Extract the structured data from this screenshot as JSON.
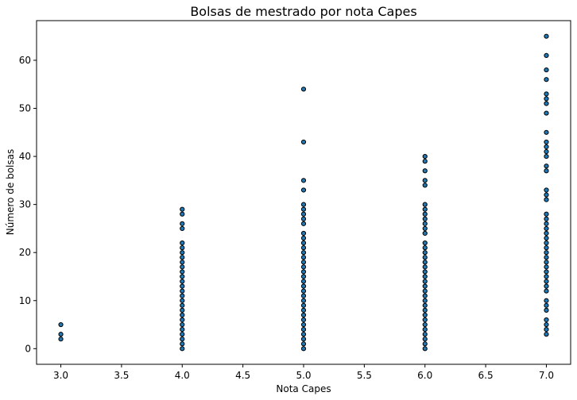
{
  "chart_data": {
    "type": "scatter",
    "title": "Bolsas de mestrado por nota Capes",
    "xlabel": "Nota Capes",
    "ylabel": "Número de bolsas",
    "xlim": [
      2.8,
      7.2
    ],
    "ylim": [
      -3.25,
      68.25
    ],
    "xticks": [
      3.0,
      3.5,
      4.0,
      4.5,
      5.0,
      5.5,
      6.0,
      6.5,
      7.0
    ],
    "xtick_labels": [
      "3.0",
      "3.5",
      "4.0",
      "4.5",
      "5.0",
      "5.5",
      "6.0",
      "6.5",
      "7.0"
    ],
    "yticks": [
      0,
      10,
      20,
      30,
      40,
      50,
      60
    ],
    "ytick_labels": [
      "0",
      "10",
      "20",
      "30",
      "40",
      "50",
      "60"
    ],
    "grid": false,
    "marker_color": "#1f77b4",
    "marker_edge_color": "#000000",
    "series": [
      {
        "x": 3,
        "y": [
          2,
          3,
          5
        ]
      },
      {
        "x": 4,
        "y": [
          0,
          1,
          2,
          3,
          4,
          5,
          6,
          7,
          8,
          9,
          10,
          11,
          12,
          13,
          14,
          15,
          16,
          17,
          18,
          19,
          20,
          21,
          22,
          25,
          26,
          28,
          29
        ]
      },
      {
        "x": 5,
        "y": [
          0,
          1,
          2,
          3,
          4,
          5,
          6,
          7,
          8,
          9,
          10,
          11,
          12,
          13,
          14,
          15,
          16,
          17,
          18,
          19,
          20,
          21,
          22,
          23,
          24,
          26,
          27,
          28,
          29,
          30,
          33,
          35,
          43,
          54
        ]
      },
      {
        "x": 6,
        "y": [
          0,
          1,
          2,
          3,
          4,
          5,
          6,
          7,
          8,
          9,
          10,
          11,
          12,
          13,
          14,
          15,
          16,
          17,
          18,
          19,
          20,
          21,
          22,
          24,
          25,
          26,
          27,
          28,
          29,
          30,
          34,
          35,
          37,
          39,
          40
        ]
      },
      {
        "x": 7,
        "y": [
          3,
          4,
          5,
          6,
          8,
          9,
          10,
          12,
          13,
          14,
          15,
          16,
          17,
          18,
          19,
          20,
          21,
          22,
          23,
          24,
          25,
          26,
          27,
          28,
          31,
          32,
          33,
          37,
          38,
          40,
          41,
          42,
          43,
          45,
          49,
          51,
          52,
          53,
          56,
          58,
          61,
          65
        ]
      }
    ]
  }
}
